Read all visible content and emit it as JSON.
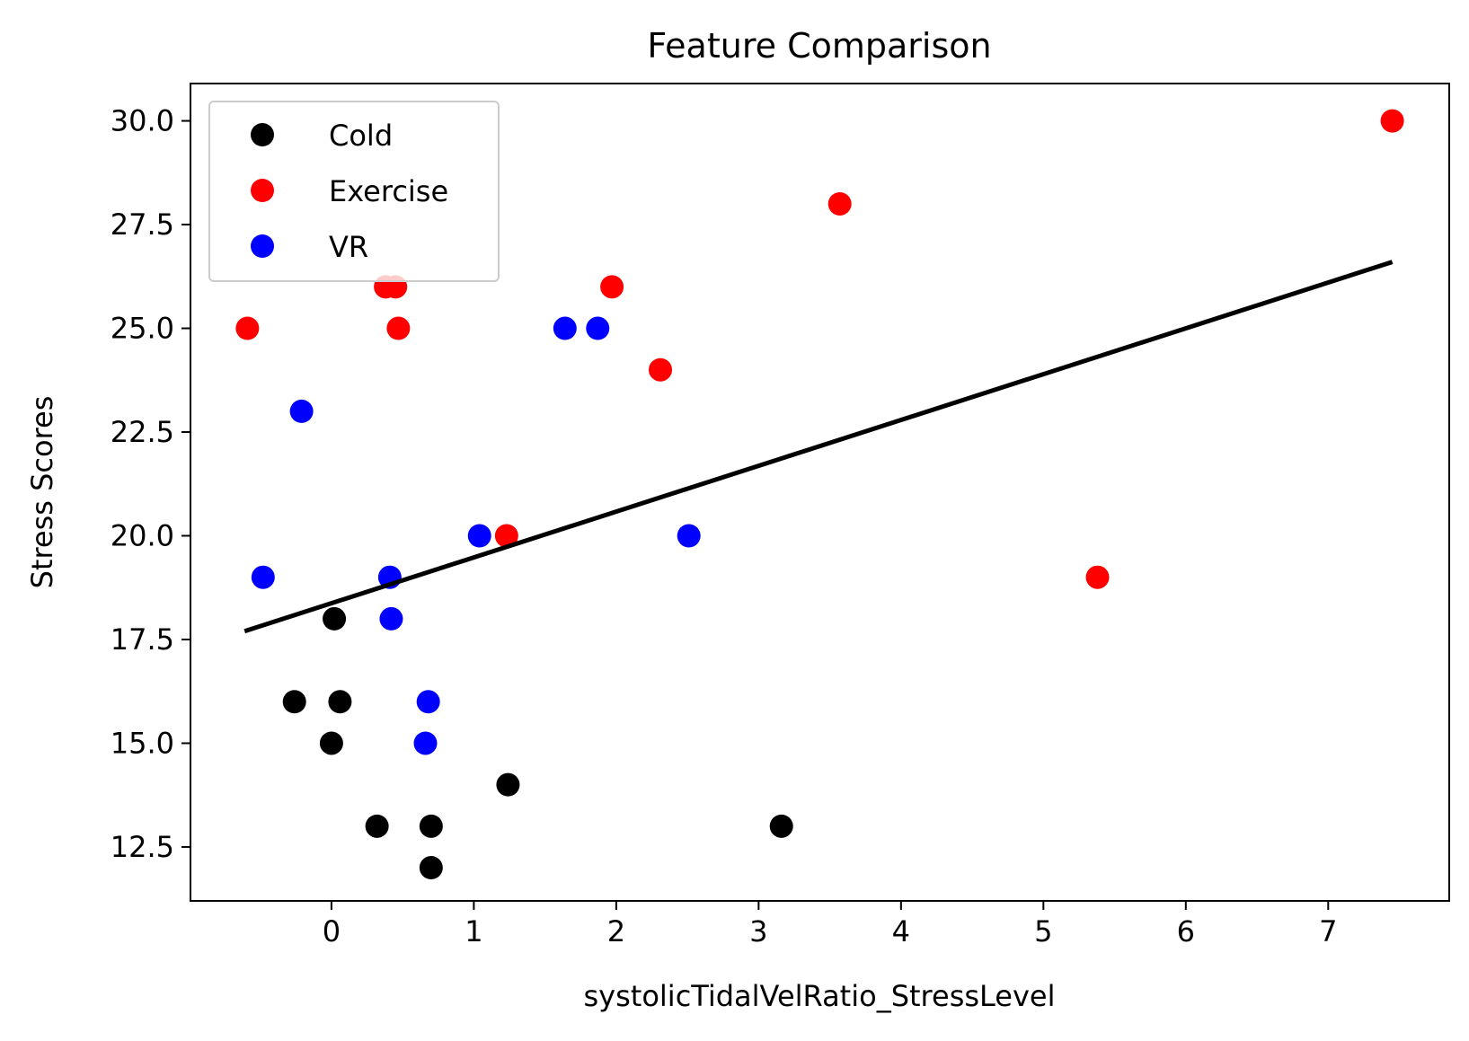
{
  "chart_data": {
    "type": "scatter",
    "title": "Feature Comparison",
    "xlabel": "systolicTidalVelRatio_StressLevel",
    "ylabel": "Stress Scores",
    "xlim": [
      -0.99,
      7.85
    ],
    "ylim": [
      11.2,
      30.9
    ],
    "x_ticks": [
      0,
      1,
      2,
      3,
      4,
      5,
      6,
      7
    ],
    "x_tick_labels": [
      "0",
      "1",
      "2",
      "3",
      "4",
      "5",
      "6",
      "7"
    ],
    "y_ticks": [
      12.5,
      15.0,
      17.5,
      20.0,
      22.5,
      25.0,
      27.5,
      30.0
    ],
    "y_tick_labels": [
      "12.5",
      "15.0",
      "17.5",
      "20.0",
      "22.5",
      "25.0",
      "27.5",
      "30.0"
    ],
    "grid": false,
    "legend_position": "top-left",
    "series": [
      {
        "name": "Cold",
        "color": "#000000",
        "points": [
          {
            "x": 0.02,
            "y": 18
          },
          {
            "x": -0.26,
            "y": 16
          },
          {
            "x": 0.06,
            "y": 16
          },
          {
            "x": 0.0,
            "y": 15
          },
          {
            "x": 1.24,
            "y": 14
          },
          {
            "x": 0.32,
            "y": 13
          },
          {
            "x": 0.7,
            "y": 13
          },
          {
            "x": 3.16,
            "y": 13
          },
          {
            "x": 0.7,
            "y": 12
          }
        ]
      },
      {
        "name": "Exercise",
        "color": "#ff0000",
        "points": [
          {
            "x": 7.45,
            "y": 30
          },
          {
            "x": 3.57,
            "y": 28
          },
          {
            "x": 0.38,
            "y": 26
          },
          {
            "x": 0.45,
            "y": 26
          },
          {
            "x": 1.97,
            "y": 26
          },
          {
            "x": -0.59,
            "y": 25
          },
          {
            "x": 0.47,
            "y": 25
          },
          {
            "x": 2.31,
            "y": 24
          },
          {
            "x": 1.23,
            "y": 20
          },
          {
            "x": 5.38,
            "y": 19
          }
        ]
      },
      {
        "name": "VR",
        "color": "#0000ff",
        "points": [
          {
            "x": 1.64,
            "y": 25
          },
          {
            "x": 1.87,
            "y": 25
          },
          {
            "x": -0.21,
            "y": 23
          },
          {
            "x": 1.04,
            "y": 20
          },
          {
            "x": 2.51,
            "y": 20
          },
          {
            "x": -0.48,
            "y": 19
          },
          {
            "x": 0.41,
            "y": 19
          },
          {
            "x": 0.42,
            "y": 18
          },
          {
            "x": 0.68,
            "y": 16
          },
          {
            "x": 0.66,
            "y": 15
          }
        ]
      }
    ],
    "trend_line": {
      "color": "#000000",
      "x": [
        -0.61,
        7.45
      ],
      "y": [
        17.7,
        26.6
      ]
    }
  }
}
